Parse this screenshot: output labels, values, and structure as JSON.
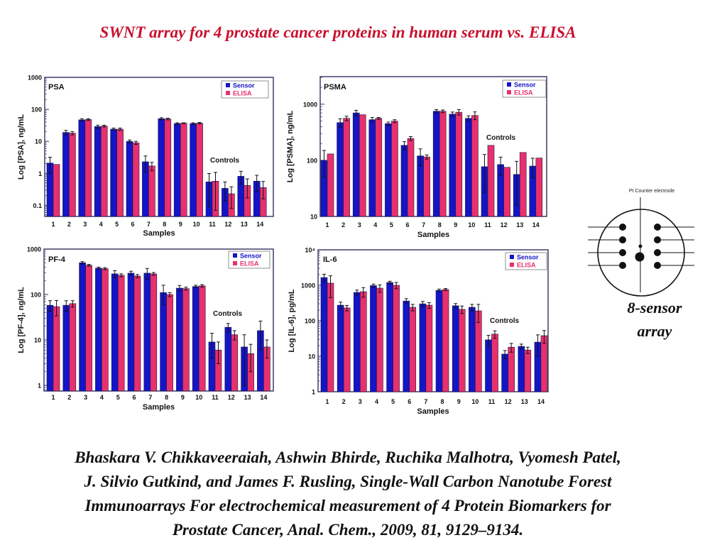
{
  "slide": {
    "title": "SWNT array for 4 prostate cancer proteins in human serum vs. ELISA",
    "title_color": "#c8102e",
    "diagram": {
      "electrode_label": "Pt Counter electrode",
      "caption_lines": [
        "8-sensor",
        "array"
      ]
    },
    "citation_lines": [
      "Bhaskara V. Chikkaveeraiah, Ashwin Bhirde, Ruchika Malhotra, Vyomesh Patel,",
      "J. Silvio Gutkind, and James F. Rusling, Single-Wall Carbon Nanotube Forest",
      "Immunoarrays For electrochemical measurement of 4 Protein Biomarkers for",
      "Prostate Cancer, Anal. Chem., 2009, 81, 9129–9134."
    ]
  },
  "chart_data": [
    {
      "type": "bar",
      "title": "PSA",
      "xlabel": "Samples",
      "ylabel": "Log [PSA], ng/mL",
      "yscale": "log",
      "ylim": [
        0.045,
        1000
      ],
      "yticks": [
        0.1,
        1,
        10,
        100,
        1000
      ],
      "ytick_labels": [
        "0.1",
        "1",
        "10",
        "100",
        "1000"
      ],
      "grid": false,
      "legend": "top-right",
      "annotations": [
        "Controls"
      ],
      "categories": [
        "1",
        "2",
        "3",
        "4",
        "5",
        "6",
        "7",
        "8",
        "9",
        "10",
        "11",
        "12",
        "13",
        "14"
      ],
      "series": [
        {
          "name": "Sensor",
          "color": "#1414c8",
          "values": [
            2.1,
            19,
            47,
            29,
            24,
            10,
            2.3,
            51,
            36,
            36,
            0.54,
            0.34,
            0.81,
            0.57
          ],
          "errors": [
            1.1,
            3,
            4,
            3,
            2,
            1,
            1.2,
            4,
            2,
            2,
            0.45,
            0.2,
            0.35,
            0.3
          ]
        },
        {
          "name": "ELISA",
          "color": "#e8306e",
          "values": [
            1.9,
            18,
            48,
            30,
            24,
            9,
            1.7,
            50,
            37,
            37,
            0.57,
            0.23,
            0.42,
            0.36
          ],
          "errors": [
            0,
            2,
            3,
            2,
            2,
            1,
            0.5,
            3,
            1,
            2,
            0.5,
            0.15,
            0.25,
            0.2
          ]
        }
      ]
    },
    {
      "type": "bar",
      "title": "PSMA",
      "xlabel": "Samples",
      "ylabel": "Log [PSMA], ng/mL",
      "yscale": "log",
      "ylim": [
        10,
        3100
      ],
      "yticks": [
        10,
        100,
        1000
      ],
      "ytick_labels": [
        "10",
        "100",
        "1000"
      ],
      "grid": false,
      "legend": "top-right",
      "annotations": [
        "Controls"
      ],
      "categories": [
        "1",
        "2",
        "3",
        "4",
        "5",
        "6",
        "7",
        "8",
        "9",
        "10",
        "11",
        "12",
        "13",
        "14"
      ],
      "series": [
        {
          "name": "Sensor",
          "color": "#1414c8",
          "values": [
            100,
            470,
            700,
            530,
            450,
            185,
            120,
            750,
            665,
            560,
            77,
            84,
            56,
            79
          ],
          "errors": [
            50,
            80,
            80,
            50,
            30,
            30,
            40,
            50,
            60,
            60,
            50,
            30,
            40,
            30
          ]
        },
        {
          "name": "ELISA",
          "color": "#e8306e",
          "values": [
            130,
            560,
            650,
            560,
            500,
            245,
            115,
            750,
            720,
            630,
            185,
            75,
            138,
            110
          ],
          "errors": [
            0,
            50,
            0,
            20,
            30,
            20,
            10,
            40,
            80,
            100,
            0,
            0,
            0,
            0
          ]
        }
      ]
    },
    {
      "type": "bar",
      "title": "PF-4",
      "xlabel": "Samples",
      "ylabel": "Log [PF-4], ng/mL",
      "yscale": "log",
      "ylim": [
        0.75,
        1000
      ],
      "yticks": [
        1,
        10,
        100,
        1000
      ],
      "ytick_labels": [
        "1",
        "10",
        "100",
        "1000"
      ],
      "grid": false,
      "legend": "top-right",
      "annotations": [
        "Controls"
      ],
      "categories": [
        "1",
        "2",
        "3",
        "4",
        "5",
        "6",
        "7",
        "8",
        "9",
        "10",
        "11",
        "12",
        "13",
        "14"
      ],
      "series": [
        {
          "name": "Sensor",
          "color": "#1414c8",
          "values": [
            58,
            58,
            500,
            380,
            285,
            295,
            295,
            110,
            138,
            150,
            9,
            19,
            7,
            16
          ],
          "errors": [
            15,
            15,
            30,
            20,
            50,
            30,
            80,
            50,
            20,
            10,
            5,
            4,
            6,
            10
          ]
        },
        {
          "name": "ELISA",
          "color": "#e8306e",
          "values": [
            54,
            63,
            440,
            370,
            265,
            255,
            285,
            100,
            135,
            155,
            6,
            13,
            5,
            7
          ],
          "errors": [
            20,
            10,
            20,
            20,
            20,
            20,
            20,
            10,
            10,
            10,
            3,
            3,
            3,
            3
          ]
        }
      ]
    },
    {
      "type": "bar",
      "title": "IL-6",
      "xlabel": "Samples",
      "ylabel": "Log [IL-6], pg/mL",
      "yscale": "log",
      "ylim": [
        1,
        10000
      ],
      "yticks": [
        1,
        10,
        100,
        1000,
        10000
      ],
      "ytick_labels": [
        "1",
        "10",
        "100",
        "1000",
        "10⁴"
      ],
      "grid": false,
      "legend": "top-right",
      "annotations": [
        "Controls"
      ],
      "categories": [
        "1",
        "2",
        "3",
        "4",
        "5",
        "6",
        "7",
        "8",
        "9",
        "10",
        "11",
        "12",
        "13",
        "14"
      ],
      "series": [
        {
          "name": "Sensor",
          "color": "#1414c8",
          "values": [
            1650,
            275,
            630,
            980,
            1200,
            360,
            300,
            720,
            265,
            240,
            29,
            11.5,
            19,
            25
          ],
          "errors": [
            400,
            60,
            100,
            100,
            100,
            60,
            50,
            60,
            40,
            50,
            10,
            3,
            3,
            15
          ]
        },
        {
          "name": "ELISA",
          "color": "#e8306e",
          "values": [
            1150,
            230,
            660,
            830,
            1000,
            240,
            275,
            760,
            210,
            190,
            42,
            18,
            15,
            38
          ],
          "errors": [
            700,
            40,
            200,
            200,
            200,
            50,
            50,
            50,
            50,
            100,
            10,
            5,
            3,
            15
          ]
        }
      ]
    }
  ]
}
